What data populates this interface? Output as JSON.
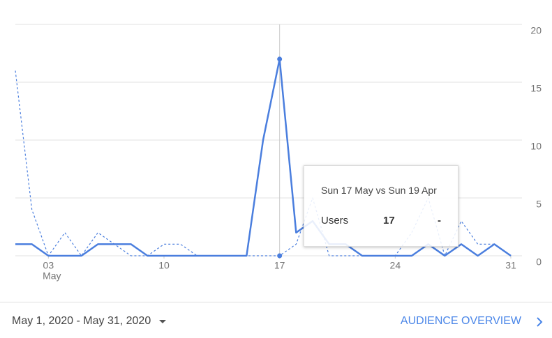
{
  "chart_data": {
    "type": "line",
    "x": [
      1,
      2,
      3,
      4,
      5,
      6,
      7,
      8,
      9,
      10,
      11,
      12,
      13,
      14,
      15,
      16,
      17,
      18,
      19,
      20,
      21,
      22,
      23,
      24,
      25,
      26,
      27,
      28,
      29,
      30,
      31
    ],
    "xlim": [
      1,
      31
    ],
    "xticks": [
      {
        "value": 3,
        "label": "03"
      },
      10,
      17,
      24,
      31
    ],
    "x_month_label": "May",
    "ylim": [
      0,
      20
    ],
    "yticks": [
      0,
      5,
      10,
      15,
      20
    ],
    "grid": true,
    "hover_x": 17,
    "series": [
      {
        "color": "#4a7ede",
        "dash": false,
        "values": [
          1,
          1,
          0,
          0,
          0,
          1,
          1,
          1,
          0,
          0,
          0,
          0,
          0,
          0,
          0,
          10,
          17,
          2,
          3,
          1,
          1,
          0,
          0,
          0,
          0,
          1,
          0,
          1,
          0,
          1,
          0
        ]
      },
      {
        "color": "#4a7ede",
        "dash": true,
        "values": [
          16,
          4,
          0,
          2,
          0,
          2,
          1,
          0,
          0,
          1,
          1,
          0,
          0,
          0,
          0,
          0,
          0,
          1,
          5,
          0,
          0,
          0,
          0,
          0,
          2,
          5,
          0,
          3,
          1,
          1,
          0
        ]
      }
    ],
    "tooltip": {
      "title": "Sun 17 May vs Sun 19 Apr",
      "metric": "Users",
      "value": 17,
      "compare": "-"
    }
  },
  "footer": {
    "date_range": "May 1, 2020 - May 31, 2020",
    "link": "AUDIENCE OVERVIEW"
  }
}
